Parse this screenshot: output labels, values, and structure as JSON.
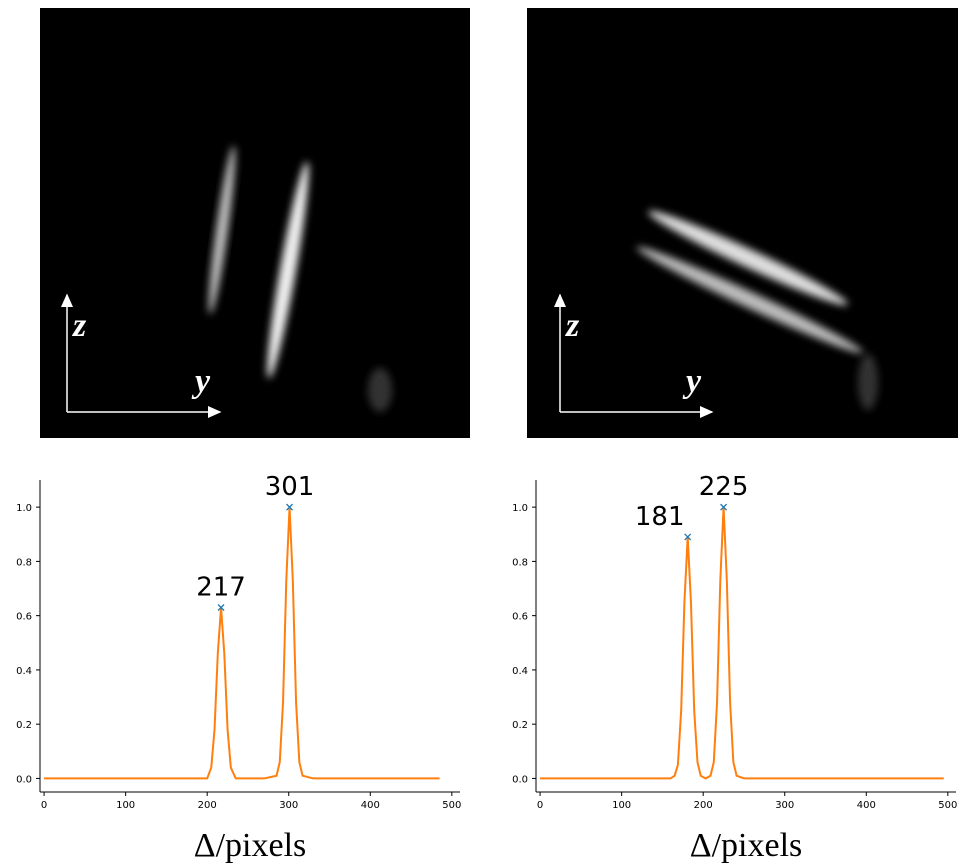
{
  "images": [
    {
      "z_label": "z",
      "y_label": "y"
    },
    {
      "z_label": "z",
      "y_label": "y"
    }
  ],
  "chart_data": [
    {
      "type": "line",
      "x_label": "Δ/pixels",
      "x": [
        0,
        190,
        200,
        205,
        209,
        213,
        217,
        221,
        225,
        229,
        235,
        270,
        285,
        289,
        293,
        297,
        301,
        305,
        309,
        313,
        317,
        330,
        485
      ],
      "series": [
        {
          "color": "#ff7f0e",
          "values": [
            0,
            0,
            0,
            0.04,
            0.18,
            0.46,
            0.63,
            0.46,
            0.18,
            0.04,
            0,
            0,
            0.01,
            0.06,
            0.28,
            0.73,
            1.0,
            0.73,
            0.28,
            0.06,
            0.01,
            0,
            0
          ]
        }
      ],
      "peaks": {
        "color": "#1f77b4",
        "x": [
          217,
          301
        ],
        "values": [
          0.63,
          1.0
        ]
      },
      "xlim": [
        -5,
        510
      ],
      "ylim": [
        -0.05,
        1.1
      ],
      "xticks": [
        0,
        100,
        200,
        300,
        400,
        500
      ],
      "yticks": [
        {
          "value": 0,
          "label": "0.0"
        },
        0.2,
        0.4,
        0.6,
        0.8,
        {
          "value": 1,
          "label": "1.0"
        }
      ]
    },
    {
      "type": "line",
      "x_label": "Δ/pixels",
      "x": [
        0,
        160,
        165,
        169,
        173,
        177,
        181,
        185,
        189,
        193,
        197,
        203,
        209,
        213,
        217,
        221,
        225,
        229,
        233,
        237,
        241,
        250,
        495
      ],
      "series": [
        {
          "color": "#ff7f0e",
          "values": [
            0,
            0,
            0.01,
            0.05,
            0.25,
            0.65,
            0.89,
            0.65,
            0.25,
            0.06,
            0.01,
            0,
            0.01,
            0.06,
            0.28,
            0.73,
            1.0,
            0.73,
            0.28,
            0.06,
            0.01,
            0,
            0
          ]
        }
      ],
      "peaks": {
        "color": "#1f77b4",
        "x": [
          181,
          225
        ],
        "values": [
          0.89,
          1.0
        ]
      },
      "xlim": [
        -5,
        510
      ],
      "ylim": [
        -0.05,
        1.1
      ],
      "xticks": [
        0,
        100,
        200,
        300,
        400,
        500
      ],
      "yticks": [
        {
          "value": 0,
          "label": "0.0"
        },
        0.2,
        0.4,
        0.6,
        0.8,
        {
          "value": 1,
          "label": "1.0"
        }
      ]
    }
  ]
}
